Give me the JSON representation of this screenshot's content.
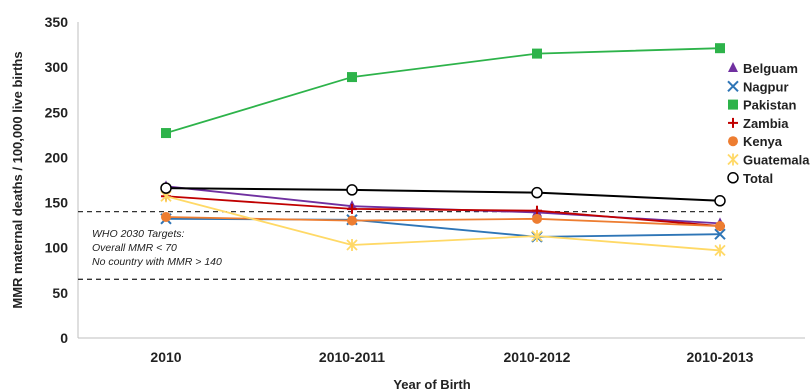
{
  "chart_data": {
    "type": "line",
    "title": "",
    "xlabel": "Year of Birth",
    "ylabel": "MMR maternal deaths / 100,000 live births",
    "categories": [
      "2010",
      "2010-2011",
      "2010-2012",
      "2010-2013"
    ],
    "ylim": [
      0,
      350
    ],
    "yticks": [
      0,
      50,
      100,
      150,
      200,
      250,
      300,
      350
    ],
    "grid": false,
    "legend_position": "right",
    "series": [
      {
        "name": "Belguam",
        "values": [
          168,
          146,
          139,
          127
        ],
        "color": "#7030a0",
        "marker": "triangle"
      },
      {
        "name": "Nagpur",
        "values": [
          132,
          131,
          112,
          115
        ],
        "color": "#2e75b6",
        "marker": "x"
      },
      {
        "name": "Pakistan",
        "values": [
          227,
          289,
          315,
          321
        ],
        "color": "#2db34a",
        "marker": "square"
      },
      {
        "name": "Zambia",
        "values": [
          157,
          143,
          141,
          124
        ],
        "color": "#c00000",
        "marker": "plus"
      },
      {
        "name": "Kenya",
        "values": [
          134,
          130,
          132,
          124
        ],
        "color": "#ed7d31",
        "marker": "circle"
      },
      {
        "name": "Guatemala",
        "values": [
          157,
          103,
          113,
          97
        ],
        "color": "#ffd966",
        "marker": "asterisk"
      },
      {
        "name": "Total",
        "values": [
          166,
          164,
          161,
          152
        ],
        "color": "#000000",
        "marker": "open-circle"
      }
    ],
    "reference_lines": [
      {
        "value": 140,
        "style": "dashed"
      },
      {
        "value": 65,
        "style": "dashed"
      }
    ],
    "annotation": {
      "lines": [
        "WHO 2030 Targets:",
        "Overall MMR < 70",
        "No country with MMR > 140"
      ]
    }
  }
}
